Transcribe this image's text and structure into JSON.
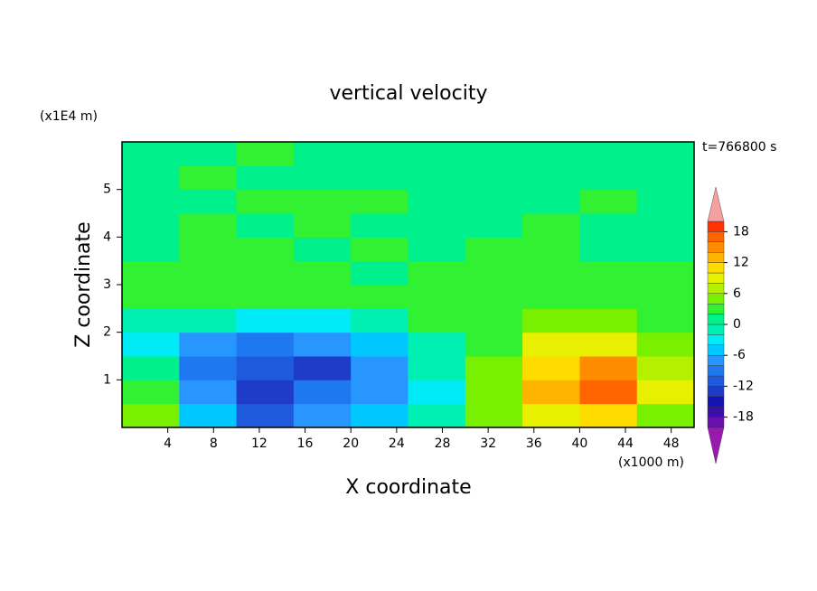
{
  "chart_data": {
    "type": "contour",
    "title": "vertical velocity",
    "y_unit": "(x1E4 m)",
    "x_unit": "(x1000 m)",
    "time_label": "t=766800 s",
    "xlabel": "X coordinate",
    "ylabel": "Z coordinate",
    "xlim": [
      0,
      50
    ],
    "ylim": [
      0,
      6
    ],
    "xticks": [
      4,
      8,
      12,
      16,
      20,
      24,
      28,
      32,
      36,
      40,
      44,
      48
    ],
    "yticks": [
      1,
      2,
      3,
      4,
      5
    ],
    "x": [
      2.5,
      7.5,
      12.5,
      17.5,
      22.5,
      27.5,
      32.5,
      37.5,
      42.5,
      47.5
    ],
    "y": [
      0.25,
      0.75,
      1.25,
      1.75,
      2.25,
      2.75,
      3.25,
      3.75,
      4.25,
      4.75,
      5.25,
      5.75
    ],
    "z": [
      [
        4,
        -6,
        -12,
        -8,
        -5,
        -2,
        4,
        8,
        10,
        5
      ],
      [
        3,
        -8,
        -14,
        -10,
        -8,
        -3,
        5,
        12,
        16,
        8
      ],
      [
        1,
        -9,
        -12,
        -14,
        -8,
        -2,
        4,
        11,
        14,
        7
      ],
      [
        -4,
        -7,
        -10,
        -7,
        -5,
        -1,
        3,
        8,
        9,
        5
      ],
      [
        -1,
        -2,
        -3,
        -3,
        -2,
        2,
        2,
        4,
        4,
        3
      ],
      [
        2,
        2,
        3,
        2,
        3,
        2,
        3,
        3,
        3,
        2
      ],
      [
        2,
        3,
        2,
        3,
        1,
        2,
        3,
        2,
        3,
        2
      ],
      [
        1,
        2,
        3,
        1,
        2,
        1,
        2,
        3,
        1,
        1
      ],
      [
        1,
        3,
        1,
        3,
        1,
        1,
        1,
        2,
        1,
        1
      ],
      [
        1,
        1,
        3,
        3,
        3,
        1,
        1,
        1,
        2,
        1
      ],
      [
        1,
        3,
        1,
        1,
        1,
        1,
        1,
        1,
        1,
        1
      ],
      [
        1,
        1,
        3,
        1,
        1,
        1,
        1,
        1,
        1,
        1
      ]
    ],
    "levels": [
      -20,
      -18,
      -16,
      -14,
      -12,
      -10,
      -8,
      -6,
      -4,
      -2,
      0,
      2,
      4,
      6,
      8,
      10,
      12,
      14,
      16,
      18,
      20
    ],
    "colors": [
      "#9a1ab0",
      "#6a0fb0",
      "#3a10a8",
      "#1414b4",
      "#1e3cc8",
      "#1e5adc",
      "#1e78f0",
      "#2896ff",
      "#00c8ff",
      "#00ebf5",
      "#00f0b4",
      "#00f08c",
      "#32f032",
      "#78f000",
      "#b4f000",
      "#e6f000",
      "#ffdc00",
      "#ffb400",
      "#ff8c00",
      "#ff6400",
      "#ff3200",
      "#f5a0a0"
    ],
    "cbar_ticks": [
      -18,
      -12,
      -6,
      0,
      6,
      12,
      18
    ]
  }
}
